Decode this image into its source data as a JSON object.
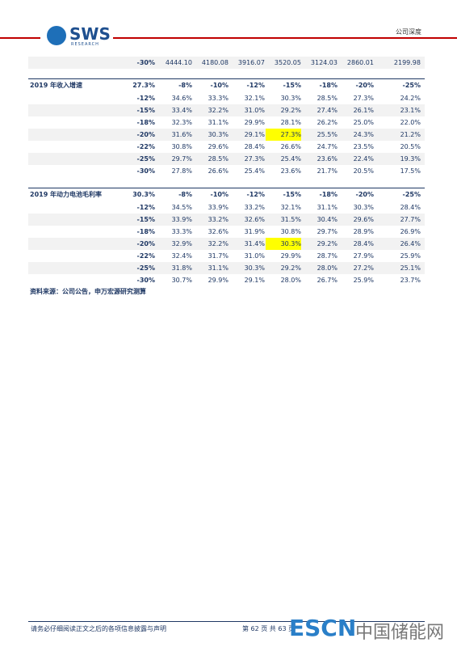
{
  "header": {
    "logo": "SWS",
    "logo_sub": "RESEARCH",
    "section": "公司深度"
  },
  "top_row": {
    "label": "-30%",
    "values": [
      "4444.10",
      "4180.08",
      "3916.07",
      "3520.05",
      "3124.03",
      "2860.01",
      "2199.98"
    ]
  },
  "tables": [
    {
      "title": "2019 年收入增速",
      "header": [
        "27.3%",
        "-8%",
        "-10%",
        "-12%",
        "-15%",
        "-18%",
        "-20%",
        "-25%"
      ],
      "highlight": {
        "row": 3,
        "col": 3,
        "color": "#ffff00"
      },
      "rows": [
        {
          "label": "-12%",
          "values": [
            "34.6%",
            "33.3%",
            "32.1%",
            "30.3%",
            "28.5%",
            "27.3%",
            "24.2%"
          ]
        },
        {
          "label": "-15%",
          "values": [
            "33.4%",
            "32.2%",
            "31.0%",
            "29.2%",
            "27.4%",
            "26.1%",
            "23.1%"
          ]
        },
        {
          "label": "-18%",
          "values": [
            "32.3%",
            "31.1%",
            "29.9%",
            "28.1%",
            "26.2%",
            "25.0%",
            "22.0%"
          ]
        },
        {
          "label": "-20%",
          "values": [
            "31.6%",
            "30.3%",
            "29.1%",
            "27.3%",
            "25.5%",
            "24.3%",
            "21.2%"
          ]
        },
        {
          "label": "-22%",
          "values": [
            "30.8%",
            "29.6%",
            "28.4%",
            "26.6%",
            "24.7%",
            "23.5%",
            "20.5%"
          ]
        },
        {
          "label": "-25%",
          "values": [
            "29.7%",
            "28.5%",
            "27.3%",
            "25.4%",
            "23.6%",
            "22.4%",
            "19.3%"
          ]
        },
        {
          "label": "-30%",
          "values": [
            "27.8%",
            "26.6%",
            "25.4%",
            "23.6%",
            "21.7%",
            "20.5%",
            "17.5%"
          ]
        }
      ]
    },
    {
      "title": "2019 年动力电池毛利率",
      "header": [
        "30.3%",
        "-8%",
        "-10%",
        "-12%",
        "-15%",
        "-18%",
        "-20%",
        "-25%"
      ],
      "highlight": {
        "row": 3,
        "col": 3,
        "color": "#ffff00"
      },
      "rows": [
        {
          "label": "-12%",
          "values": [
            "34.5%",
            "33.9%",
            "33.2%",
            "32.1%",
            "31.1%",
            "30.3%",
            "28.4%"
          ]
        },
        {
          "label": "-15%",
          "values": [
            "33.9%",
            "33.2%",
            "32.6%",
            "31.5%",
            "30.4%",
            "29.6%",
            "27.7%"
          ]
        },
        {
          "label": "-18%",
          "values": [
            "33.3%",
            "32.6%",
            "31.9%",
            "30.8%",
            "29.7%",
            "28.9%",
            "26.9%"
          ]
        },
        {
          "label": "-20%",
          "values": [
            "32.9%",
            "32.2%",
            "31.4%",
            "30.3%",
            "29.2%",
            "28.4%",
            "26.4%"
          ]
        },
        {
          "label": "-22%",
          "values": [
            "32.4%",
            "31.7%",
            "31.0%",
            "29.9%",
            "28.7%",
            "27.9%",
            "25.9%"
          ]
        },
        {
          "label": "-25%",
          "values": [
            "31.8%",
            "31.1%",
            "30.3%",
            "29.2%",
            "28.0%",
            "27.2%",
            "25.1%"
          ]
        },
        {
          "label": "-30%",
          "values": [
            "30.7%",
            "29.9%",
            "29.1%",
            "28.0%",
            "26.7%",
            "25.9%",
            "23.7%"
          ]
        }
      ]
    }
  ],
  "source": "资料来源：公司公告，申万宏源研究测算",
  "footer": {
    "disclaimer": "请务必仔细阅读正文之后的各项信息披露与声明",
    "page": "第 62 页 共 63 页",
    "watermark": "ESCN",
    "watermark_text": "中国储能网"
  }
}
